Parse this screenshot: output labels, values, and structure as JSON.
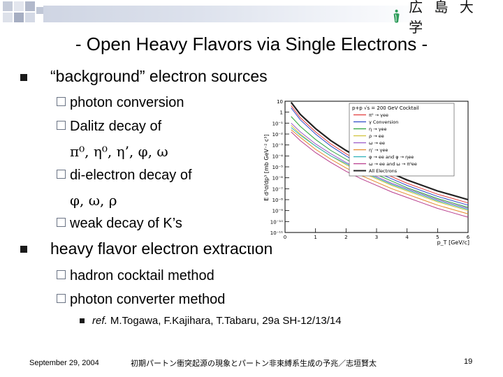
{
  "header": {
    "logo_text": "広 島 大 学",
    "accent_colors": {
      "tile_dark": "#a6aec2",
      "tile_light": "#d4d9e5",
      "logo_green": "#2e9c5a"
    }
  },
  "slide": {
    "title": "- Open Heavy Flavors via Single Electrons -",
    "items": [
      {
        "text": "“background” electron sources",
        "subitems": [
          {
            "text": "photon conversion"
          },
          {
            "text": "Dalitz decay of",
            "cont": "π⁰, η⁰, η’, φ, ω"
          },
          {
            "text": "di-electron decay of",
            "cont": "φ, ω, ρ"
          },
          {
            "text": "weak decay of K’s"
          }
        ]
      },
      {
        "text": "heavy flavor electron extraction",
        "subitems": [
          {
            "text": "hadron cocktail method"
          },
          {
            "text": "photon converter method"
          }
        ],
        "reference": {
          "label": "ref.",
          "text": "M.Togawa, F.Kajihara, T.Tabaru, 29a SH-12/13/14"
        }
      }
    ]
  },
  "chart_data": {
    "type": "line",
    "ylabel": "E d³σ/dp³ [mb GeV⁻² c³]",
    "xlabel": "p_T [GeV/c]",
    "x_ticks": [
      "0",
      "1",
      "2",
      "3",
      "4",
      "5",
      "6"
    ],
    "y_ticks": [
      "10",
      "1",
      "10⁻¹",
      "10⁻²",
      "10⁻³",
      "10⁻⁴",
      "10⁻⁵",
      "10⁻⁶",
      "10⁻⁷",
      "10⁻⁸",
      "10⁻⁹",
      "10⁻¹⁰",
      "10⁻¹¹"
    ],
    "x_range": [
      0,
      6
    ],
    "y_log_range": [
      -11,
      1
    ],
    "log_y": true,
    "legend_title": "p+p √s = 200 GeV Cocktail",
    "legend_position": "top-right",
    "legend": [
      "π⁰ → γee",
      "γ Conversion",
      "η → γee",
      "ρ → ee",
      "ω → ee",
      "η' → γee",
      "φ → ee and φ → ηee",
      "ω → ee and ω → π⁰ee",
      "All Electrons"
    ],
    "series_colors": [
      "#e23c3c",
      "#2f4cc8",
      "#2aa23a",
      "#d0c23a",
      "#9a58c8",
      "#e38a2a",
      "#2ab0b8",
      "#b83c8c",
      "#222222"
    ],
    "series": [
      {
        "x": [
          0.2,
          0.5,
          1,
          1.5,
          2,
          2.5,
          3,
          3.5,
          4,
          4.5,
          5,
          5.5,
          6
        ],
        "log10y": [
          0.6,
          -0.5,
          -1.8,
          -2.9,
          -3.8,
          -4.6,
          -5.3,
          -5.9,
          -6.5,
          -7.0,
          -7.5,
          -7.9,
          -8.3
        ]
      },
      {
        "x": [
          0.2,
          0.5,
          1,
          1.5,
          2,
          2.5,
          3,
          3.5,
          4,
          4.5,
          5,
          5.5,
          6
        ],
        "log10y": [
          0.4,
          -0.7,
          -2.0,
          -3.1,
          -4.0,
          -4.8,
          -5.5,
          -6.1,
          -6.7,
          -7.2,
          -7.7,
          -8.1,
          -8.5
        ]
      },
      {
        "x": [
          0.2,
          0.5,
          1,
          1.5,
          2,
          2.5,
          3,
          3.5,
          4,
          4.5,
          5,
          5.5,
          6
        ],
        "log10y": [
          -0.4,
          -1.3,
          -2.5,
          -3.5,
          -4.3,
          -5.1,
          -5.7,
          -6.3,
          -6.9,
          -7.4,
          -7.9,
          -8.3,
          -8.7
        ]
      },
      {
        "x": [
          0.2,
          0.5,
          1,
          1.5,
          2,
          2.5,
          3,
          3.5,
          4,
          4.5,
          5,
          5.5,
          6
        ],
        "log10y": [
          -1.2,
          -2.0,
          -3.1,
          -4.0,
          -4.8,
          -5.5,
          -6.1,
          -6.7,
          -7.2,
          -7.7,
          -8.2,
          -8.6,
          -9.0
        ]
      },
      {
        "x": [
          0.2,
          0.5,
          1,
          1.5,
          2,
          2.5,
          3,
          3.5,
          4,
          4.5,
          5,
          5.5,
          6
        ],
        "log10y": [
          -1.0,
          -1.8,
          -2.9,
          -3.8,
          -4.6,
          -5.3,
          -5.9,
          -6.5,
          -7.0,
          -7.5,
          -8.0,
          -8.4,
          -8.8
        ]
      },
      {
        "x": [
          0.2,
          0.5,
          1,
          1.5,
          2,
          2.5,
          3,
          3.5,
          4,
          4.5,
          5,
          5.5,
          6
        ],
        "log10y": [
          -1.6,
          -2.3,
          -3.4,
          -4.3,
          -5.1,
          -5.8,
          -6.4,
          -7.0,
          -7.5,
          -8.0,
          -8.5,
          -8.9,
          -9.3
        ]
      },
      {
        "x": [
          0.2,
          0.5,
          1,
          1.5,
          2,
          2.5,
          3,
          3.5,
          4,
          4.5,
          5,
          5.5,
          6
        ],
        "log10y": [
          -1.4,
          -2.1,
          -3.1,
          -4.0,
          -4.7,
          -5.4,
          -6.0,
          -6.6,
          -7.1,
          -7.6,
          -8.1,
          -8.5,
          -8.9
        ]
      },
      {
        "x": [
          0.2,
          0.5,
          1,
          1.5,
          2,
          2.5,
          3,
          3.5,
          4,
          4.5,
          5,
          5.5,
          6
        ],
        "log10y": [
          -1.8,
          -2.6,
          -3.7,
          -4.6,
          -5.4,
          -6.1,
          -6.7,
          -7.3,
          -7.8,
          -8.3,
          -8.8,
          -9.2,
          -9.6
        ]
      },
      {
        "x": [
          0.2,
          0.5,
          1,
          1.5,
          2,
          2.5,
          3,
          3.5,
          4,
          4.5,
          5,
          5.5,
          6
        ],
        "log10y": [
          0.9,
          -0.2,
          -1.5,
          -2.6,
          -3.5,
          -4.3,
          -5.0,
          -5.6,
          -6.2,
          -6.7,
          -7.2,
          -7.6,
          -8.0
        ]
      }
    ]
  },
  "footer": {
    "date": "September 29, 2004",
    "center": "初期パートン衝突起源の現象とパートン非束縛系生成の予兆／志垣賢太",
    "page": "19"
  }
}
